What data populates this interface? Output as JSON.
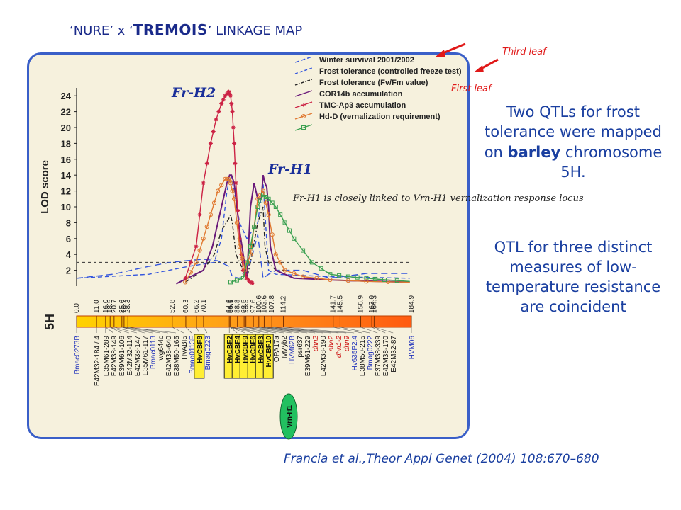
{
  "title": {
    "part1": "‘NURE’ x ‘",
    "part2": "TREMOIS",
    "part3": "’ LINKAGE MAP"
  },
  "annotations": {
    "third_leaf": "Third leaf",
    "first_leaf": "First leaf",
    "fr_h2": "Fr-H2",
    "fr_h1": "Fr-H1",
    "vrn_note": "Fr-H1 is closely linked to Vrn-H1 vernalization response locus"
  },
  "right_text": {
    "block1_a": "Two QTLs for frost tolerance were mapped on ",
    "block1_b": "barley",
    "block1_c": " chromosome 5H.",
    "block2": "QTL for three distinct measures of low-temperature resistance are coincident"
  },
  "citation": "Francia et al.,Theor Appl Genet (2004) 108:670–680",
  "colors": {
    "arrow": "#e01818",
    "text_blue": "#1a3fa0",
    "panel_border": "#3a5fc8",
    "panel_bg": "#f6f1dd"
  },
  "chart_data": {
    "type": "line",
    "ylabel": "LOD score",
    "ylim": [
      0,
      25
    ],
    "yticks": [
      2,
      4,
      6,
      8,
      10,
      12,
      14,
      16,
      18,
      20,
      22,
      24
    ],
    "xlim": [
      0,
      184.9
    ],
    "threshold": 3,
    "chromosome": "5H",
    "positions": [
      "0.0",
      "11.0",
      "16.0",
      "18.5",
      "20.7",
      "25.0",
      "26.2",
      "28.3",
      "52.8",
      "60.3",
      "66.2",
      "70.1",
      "84.3",
      "84.9",
      "85.1",
      "88.8",
      "92.5",
      "93.5",
      "97.6",
      "100.6",
      "103.6",
      "107.8",
      "114.2",
      "141.7",
      "145.5",
      "156.9",
      "163.0",
      "164.3",
      "184.9"
    ],
    "markers": [
      {
        "name": "Bmac0273B",
        "pos": 0.0,
        "color": "#2233bb"
      },
      {
        "name": "E42M32-184 / 4",
        "pos": 11.0,
        "color": "#111111"
      },
      {
        "name": "E35M61-289",
        "pos": 16.0,
        "color": "#111111"
      },
      {
        "name": "E42M38-149",
        "pos": 16.0,
        "color": "#111111"
      },
      {
        "name": "E39M61-106",
        "pos": 18.5,
        "color": "#111111"
      },
      {
        "name": "E42M32-114",
        "pos": 18.5,
        "color": "#111111"
      },
      {
        "name": "E42M38-147",
        "pos": 20.7,
        "color": "#111111"
      },
      {
        "name": "E35M61-117",
        "pos": 25.0,
        "color": "#111111"
      },
      {
        "name": "Bmac0113",
        "pos": 25.0,
        "color": "#2233bb"
      },
      {
        "name": "wg644c",
        "pos": 26.2,
        "color": "#111111"
      },
      {
        "name": "E42M38-640",
        "pos": 28.3,
        "color": "#111111"
      },
      {
        "name": "E38M50-165",
        "pos": 28.3,
        "color": "#111111"
      },
      {
        "name": "HvABI5",
        "pos": 52.8,
        "color": "#111111"
      },
      {
        "name": "Bmag0113F",
        "pos": 60.3,
        "color": "#2233bb"
      },
      {
        "name": "HvCBF8",
        "pos": 66.2,
        "color": "#111111",
        "box": true
      },
      {
        "name": "Bmag0223",
        "pos": 70.1,
        "color": "#2233bb"
      },
      {
        "name": "HvCBF2",
        "pos": 84.3,
        "color": "#111111",
        "box": true
      },
      {
        "name": "HvCBF4",
        "pos": 84.9,
        "color": "#111111",
        "box": true
      },
      {
        "name": "HvCBF9",
        "pos": 84.9,
        "color": "#111111",
        "box": true
      },
      {
        "name": "HvCBF6",
        "pos": 85.1,
        "color": "#111111",
        "box": true
      },
      {
        "name": "HvCBF3",
        "pos": 85.1,
        "color": "#111111",
        "box": true
      },
      {
        "name": "HvCBF10",
        "pos": 85.1,
        "color": "#111111",
        "box": true
      },
      {
        "name": "OPA17a",
        "pos": 88.8,
        "color": "#111111"
      },
      {
        "name": "HvMyb2",
        "pos": 92.5,
        "color": "#111111"
      },
      {
        "name": "HVM62B",
        "pos": 93.5,
        "color": "#2233bb"
      },
      {
        "name": "psr637",
        "pos": 97.6,
        "color": "#111111"
      },
      {
        "name": "E39M61-229",
        "pos": 100.6,
        "color": "#111111"
      },
      {
        "name": "dhn2",
        "pos": 100.6,
        "color": "#cc1111"
      },
      {
        "name": "E42M38-190",
        "pos": 103.6,
        "color": "#111111"
      },
      {
        "name": "aba2",
        "pos": 103.6,
        "color": "#cc1111"
      },
      {
        "name": "dhn1-2",
        "pos": 107.8,
        "color": "#cc1111"
      },
      {
        "name": "dhn9",
        "pos": 107.8,
        "color": "#cc1111"
      },
      {
        "name": "Hv635P2.4",
        "pos": 114.2,
        "color": "#2233bb"
      },
      {
        "name": "Vrn-H1",
        "pos": 103.6,
        "color": "#111111",
        "ellipse": true
      },
      {
        "name": "E38M50-215",
        "pos": 141.7,
        "color": "#111111"
      },
      {
        "name": "Bmag0222",
        "pos": 145.5,
        "color": "#2233bb"
      },
      {
        "name": "E37M38-339",
        "pos": 156.9,
        "color": "#111111"
      },
      {
        "name": "E42M38-170",
        "pos": 163.0,
        "color": "#111111"
      },
      {
        "name": "E42M32-87",
        "pos": 164.3,
        "color": "#111111"
      },
      {
        "name": "HVM06",
        "pos": 184.9,
        "color": "#2233bb"
      }
    ],
    "legend": [
      {
        "name": "Winter survival 2001/2002",
        "color": "#3355dd",
        "style": "long-dash"
      },
      {
        "name": "Frost tolerance (controlled freeze test)",
        "color": "#3355dd",
        "style": "dash"
      },
      {
        "name": "Frost tolerance (Fv/Fm value)",
        "color": "#222222",
        "style": "dash-dot"
      },
      {
        "name": "COR14b accumulation",
        "color": "#6a1a7a",
        "style": "solid"
      },
      {
        "name": "TMC-Ap3 accumulation",
        "color": "#cc2244",
        "style": "star"
      },
      {
        "name": "Hd-D (vernalization requirement)",
        "color": "#e07830",
        "style": "circle"
      },
      {
        "name": "",
        "color": "#3aa050",
        "style": "square"
      }
    ],
    "series": [
      {
        "name": "Winter survival 2001/2002",
        "x": [
          0,
          20,
          40,
          52,
          60,
          70,
          78,
          84,
          86,
          90,
          96,
          100,
          103,
          106,
          110,
          125,
          140,
          160,
          184
        ],
        "y": [
          1,
          1.5,
          2.5,
          3,
          3.2,
          3.4,
          3.2,
          2.5,
          1.2,
          1,
          3,
          6.5,
          1,
          1.5,
          2,
          2,
          1,
          1.6,
          1.6
        ]
      },
      {
        "name": "Frost tolerance (controlled freeze test)",
        "x": [
          0,
          40,
          62,
          76,
          80,
          83,
          85,
          87,
          90,
          94,
          100,
          103,
          106,
          110,
          140,
          184
        ],
        "y": [
          1,
          1.5,
          2.5,
          3,
          6,
          12,
          14,
          12,
          8,
          6,
          8,
          13,
          2,
          1.5,
          1.2,
          1
        ]
      },
      {
        "name": "Frost tolerance (Fv/Fm value)",
        "x": [
          60,
          70,
          76,
          80,
          84,
          85,
          86,
          88,
          92,
          94,
          96,
          100,
          103,
          104,
          106,
          110,
          115
        ],
        "y": [
          0.5,
          2,
          4,
          7,
          8.5,
          9,
          8,
          4,
          2,
          1,
          3,
          8,
          10,
          5,
          3,
          2,
          2
        ]
      },
      {
        "name": "COR14b accumulation",
        "x": [
          55,
          70,
          75,
          80,
          83,
          84.5,
          85.5,
          87,
          90,
          94,
          96,
          98,
          100,
          102,
          103,
          104,
          105,
          106,
          107,
          110,
          120,
          150,
          184
        ],
        "y": [
          0.3,
          2,
          5,
          10,
          13,
          14,
          14,
          13,
          7,
          1,
          10,
          13,
          11,
          11,
          14,
          13,
          12.5,
          10,
          5,
          2,
          1,
          0.7,
          0.5
        ]
      },
      {
        "name": "TMC-Ap3 accumulation",
        "x": [
          60,
          66,
          70,
          74,
          77,
          80,
          82,
          84,
          85,
          86,
          87,
          88,
          90,
          92,
          94,
          96,
          98
        ],
        "y": [
          1,
          5,
          13,
          18,
          21,
          23,
          24,
          24.5,
          24,
          22,
          18,
          13,
          6,
          2,
          1,
          0.5,
          0.3
        ]
      },
      {
        "name": "Hd-D (vernalization requirement)",
        "x": [
          60,
          66,
          70,
          74,
          78,
          82,
          84,
          85,
          87,
          90,
          93,
          96,
          100,
          103,
          106,
          110,
          115,
          125,
          140,
          160,
          184
        ],
        "y": [
          0.5,
          3,
          6,
          9,
          12,
          13.5,
          13.5,
          13,
          11,
          5,
          2,
          4,
          11,
          12,
          9,
          4,
          2,
          1.2,
          0.8,
          0.6,
          0.5
        ]
      },
      {
        "name": "",
        "x": [
          85,
          92,
          96,
          100,
          103,
          106,
          110,
          115,
          120,
          130,
          140,
          150,
          160,
          170,
          184
        ],
        "y": [
          0.5,
          1,
          5,
          10,
          11.5,
          11,
          10,
          8,
          6,
          3,
          1.5,
          1.2,
          1,
          0.8,
          0.6
        ]
      }
    ]
  }
}
